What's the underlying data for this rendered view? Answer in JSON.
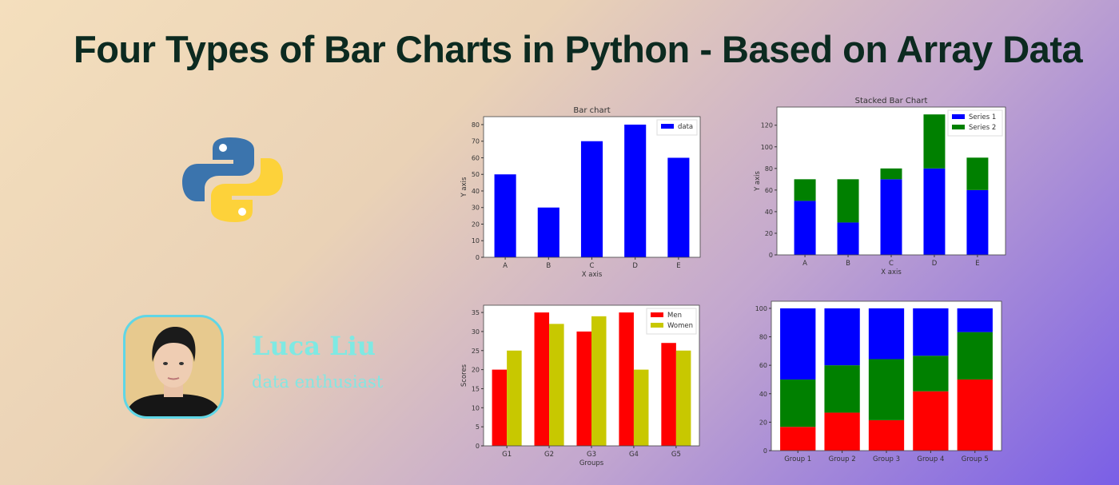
{
  "title": "Four Types of Bar Charts in Python - Based on Array Data",
  "author": {
    "name": "Luca Liu",
    "role": "data enthusiast"
  },
  "icons": {
    "logo": "python-logo-icon",
    "avatar": "author-photo"
  },
  "colors": {
    "title": "#0c2a20",
    "name": "#7ee9e3",
    "blue": "#0000ff",
    "green": "#008000",
    "red": "#ff0000",
    "olive": "#c8c800"
  },
  "chart_data": [
    {
      "type": "bar",
      "title": "Bar chart",
      "xlabel": "X axis",
      "ylabel": "Y axis",
      "categories": [
        "A",
        "B",
        "C",
        "D",
        "E"
      ],
      "ylim": [
        0,
        84.8
      ],
      "yticks": [
        0,
        10,
        20,
        30,
        40,
        50,
        60,
        70,
        80
      ],
      "legend": "top-right",
      "series": [
        {
          "name": "data",
          "values": [
            50,
            30,
            70,
            80,
            60
          ],
          "color": "#0000ff"
        }
      ]
    },
    {
      "type": "bar",
      "stacked": true,
      "title": "Stacked Bar Chart",
      "xlabel": "X axis",
      "ylabel": "Y axis",
      "categories": [
        "A",
        "B",
        "C",
        "D",
        "E"
      ],
      "ylim": [
        0,
        136.8
      ],
      "yticks": [
        0,
        20,
        40,
        60,
        80,
        100,
        120
      ],
      "legend": "top-right",
      "series": [
        {
          "name": "Series 1",
          "values": [
            50,
            30,
            70,
            80,
            60
          ],
          "color": "#0000ff"
        },
        {
          "name": "Series 2",
          "values": [
            20,
            40,
            10,
            50,
            30
          ],
          "color": "#008000"
        }
      ]
    },
    {
      "type": "bar",
      "grouped": true,
      "title": "",
      "xlabel": "Groups",
      "ylabel": "Scores",
      "categories": [
        "G1",
        "G2",
        "G3",
        "G4",
        "G5"
      ],
      "ylim": [
        0,
        36.9
      ],
      "yticks": [
        0,
        5,
        10,
        15,
        20,
        25,
        30,
        35
      ],
      "legend": "top-right",
      "series": [
        {
          "name": "Men",
          "values": [
            20,
            35,
            30,
            35,
            27
          ],
          "color": "#ff0000"
        },
        {
          "name": "Women",
          "values": [
            25,
            32,
            34,
            20,
            25
          ],
          "color": "#c8c800"
        }
      ]
    },
    {
      "type": "bar",
      "stacked": true,
      "percent": true,
      "title": "",
      "xlabel": "",
      "ylabel": "",
      "categories": [
        "Group 1",
        "Group 2",
        "Group 3",
        "Group 4",
        "Group 5"
      ],
      "ylim": [
        0,
        105
      ],
      "yticks": [
        0,
        20,
        40,
        60,
        80,
        100
      ],
      "series": [
        {
          "values": [
            16.7,
            26.7,
            21.4,
            41.7,
            50.0
          ],
          "color": "#ff0000"
        },
        {
          "values": [
            33.3,
            33.3,
            42.9,
            25.0,
            33.3
          ],
          "color": "#008000"
        },
        {
          "values": [
            50.0,
            40.0,
            35.7,
            33.3,
            16.7
          ],
          "color": "#0000ff"
        }
      ]
    }
  ]
}
